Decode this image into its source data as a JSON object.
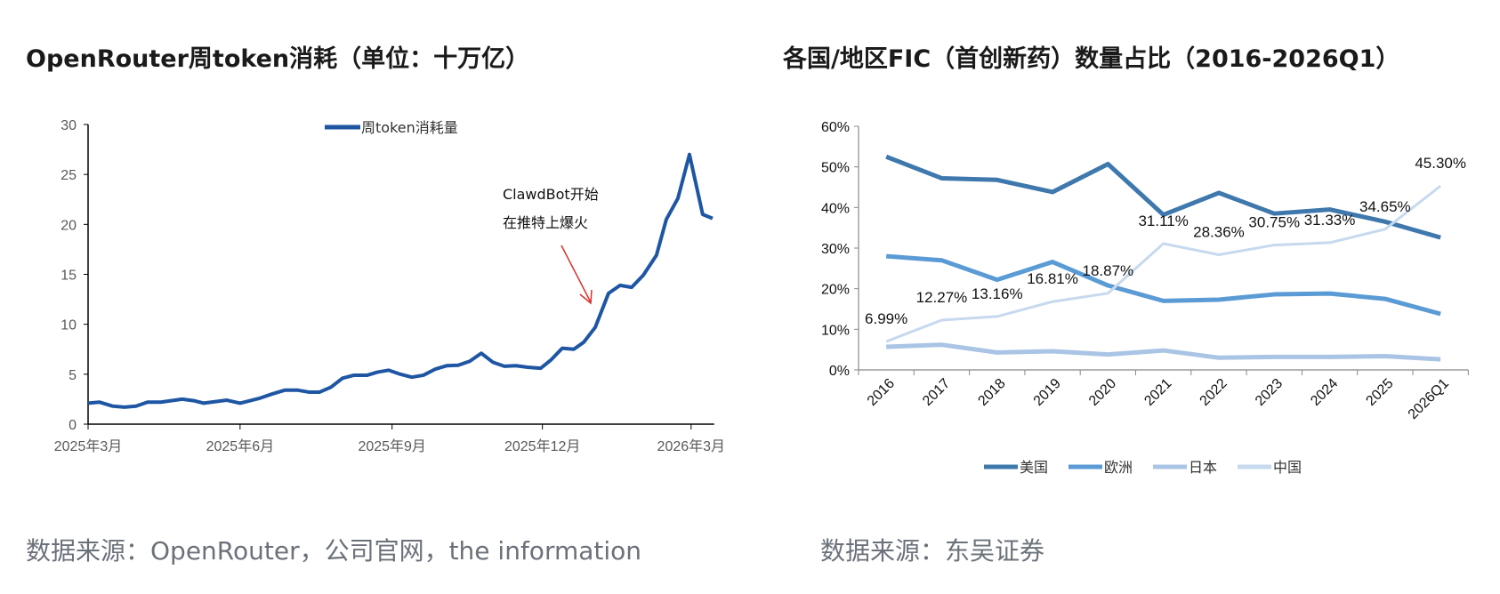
{
  "left": {
    "title": "OpenRouter周token消耗（单位：十万亿）",
    "source": "数据来源：OpenRouter，公司官网，the information"
  },
  "right": {
    "title": "各国/地区FIC（首创新药）数量占比（2016-2026Q1）",
    "source": "数据来源：东吴证券"
  },
  "chart_data": [
    {
      "type": "line",
      "title": "OpenRouter周token消耗（单位：十万亿）",
      "xlabel": "",
      "ylabel": "",
      "ylim": [
        0,
        30
      ],
      "yticks": [
        "0",
        "5",
        "10",
        "15",
        "20",
        "25",
        "30"
      ],
      "xticks": [
        {
          "date": "2025-03-01",
          "label": "2025年3月"
        },
        {
          "date": "2025-06-01",
          "label": "2025年6月"
        },
        {
          "date": "2025-09-01",
          "label": "2025年9月"
        },
        {
          "date": "2025-12-01",
          "label": "2025年12月"
        },
        {
          "date": "2026-03-01",
          "label": "2026年3月"
        }
      ],
      "xlim": [
        "2025-03-01",
        "2026-03-15"
      ],
      "legend": "top-center",
      "grid": false,
      "annotation": {
        "lines": [
          "ClawdBot开始",
          "在推特上爆火"
        ],
        "arrow_color": "#d9312b",
        "points_to": "2026-01-06"
      },
      "series": [
        {
          "name": "周token消耗量",
          "color": "#1f56a3",
          "x": [
            "2025-03-01",
            "2025-03-08",
            "2025-03-16",
            "2025-03-23",
            "2025-03-30",
            "2025-04-06",
            "2025-04-14",
            "2025-04-27",
            "2025-05-04",
            "2025-05-10",
            "2025-05-24",
            "2025-06-01",
            "2025-06-13",
            "2025-06-20",
            "2025-06-28",
            "2025-07-06",
            "2025-07-13",
            "2025-07-19",
            "2025-07-26",
            "2025-08-02",
            "2025-08-09",
            "2025-08-17",
            "2025-08-23",
            "2025-08-30",
            "2025-09-06",
            "2025-09-13",
            "2025-09-20",
            "2025-09-27",
            "2025-10-04",
            "2025-10-11",
            "2025-10-18",
            "2025-10-25",
            "2025-11-01",
            "2025-11-08",
            "2025-11-15",
            "2025-11-22",
            "2025-11-30",
            "2025-12-06",
            "2025-12-13",
            "2025-12-20",
            "2025-12-26",
            "2026-01-02",
            "2026-01-10",
            "2026-01-17",
            "2026-01-24",
            "2026-01-31",
            "2026-02-08",
            "2026-02-14",
            "2026-02-21",
            "2026-02-28",
            "2026-03-08",
            "2026-03-14"
          ],
          "y": [
            2.1,
            2.2,
            1.8,
            1.7,
            1.8,
            2.2,
            2.2,
            2.5,
            2.35,
            2.1,
            2.4,
            2.1,
            2.6,
            3.0,
            3.4,
            3.4,
            3.2,
            3.2,
            3.7,
            4.6,
            4.9,
            4.9,
            5.2,
            5.4,
            5.0,
            4.7,
            4.9,
            5.5,
            5.85,
            5.9,
            6.3,
            7.1,
            6.2,
            5.8,
            5.85,
            5.7,
            5.6,
            6.4,
            7.6,
            7.5,
            8.2,
            9.7,
            13.1,
            13.9,
            13.7,
            14.9,
            16.9,
            20.5,
            22.6,
            27.0,
            21.0,
            20.6
          ]
        }
      ]
    },
    {
      "type": "line",
      "title": "各国/地区FIC（首创新药）数量占比（2016-2026Q1）",
      "xlabel": "",
      "ylabel": "",
      "ylim": [
        0,
        60
      ],
      "yticks": [
        "0%",
        "10%",
        "20%",
        "30%",
        "40%",
        "50%",
        "60%"
      ],
      "categories": [
        "2016",
        "2017",
        "2018",
        "2019",
        "2020",
        "2021",
        "2022",
        "2023",
        "2024",
        "2025",
        "2026Q1"
      ],
      "legend": "bottom",
      "grid": false,
      "series": [
        {
          "name": "美国",
          "color": "#3f78ad",
          "width": 5,
          "values": [
            52.5,
            47.2,
            46.8,
            43.8,
            50.7,
            38.2,
            43.6,
            38.5,
            39.5,
            36.5,
            32.6
          ]
        },
        {
          "name": "欧洲",
          "color": "#5b9bd5",
          "width": 5,
          "values": [
            28.0,
            27.0,
            22.2,
            26.6,
            20.8,
            17.0,
            17.3,
            18.6,
            18.8,
            17.5,
            13.8
          ]
        },
        {
          "name": "日本",
          "color": "#a9c4e4",
          "width": 5,
          "values": [
            5.7,
            6.2,
            4.3,
            4.6,
            3.8,
            4.8,
            3.0,
            3.2,
            3.2,
            3.4,
            2.6
          ]
        },
        {
          "name": "中国",
          "color": "#c6d9ef",
          "width": 3,
          "values": [
            6.99,
            12.27,
            13.16,
            16.81,
            18.87,
            31.11,
            28.36,
            30.75,
            31.33,
            34.65,
            45.3
          ],
          "data_labels": [
            "6.99%",
            "12.27%",
            "13.16%",
            "16.81%",
            "18.87%",
            "31.11%",
            "28.36%",
            "30.75%",
            "31.33%",
            "34.65%",
            "45.30%"
          ]
        }
      ]
    }
  ]
}
